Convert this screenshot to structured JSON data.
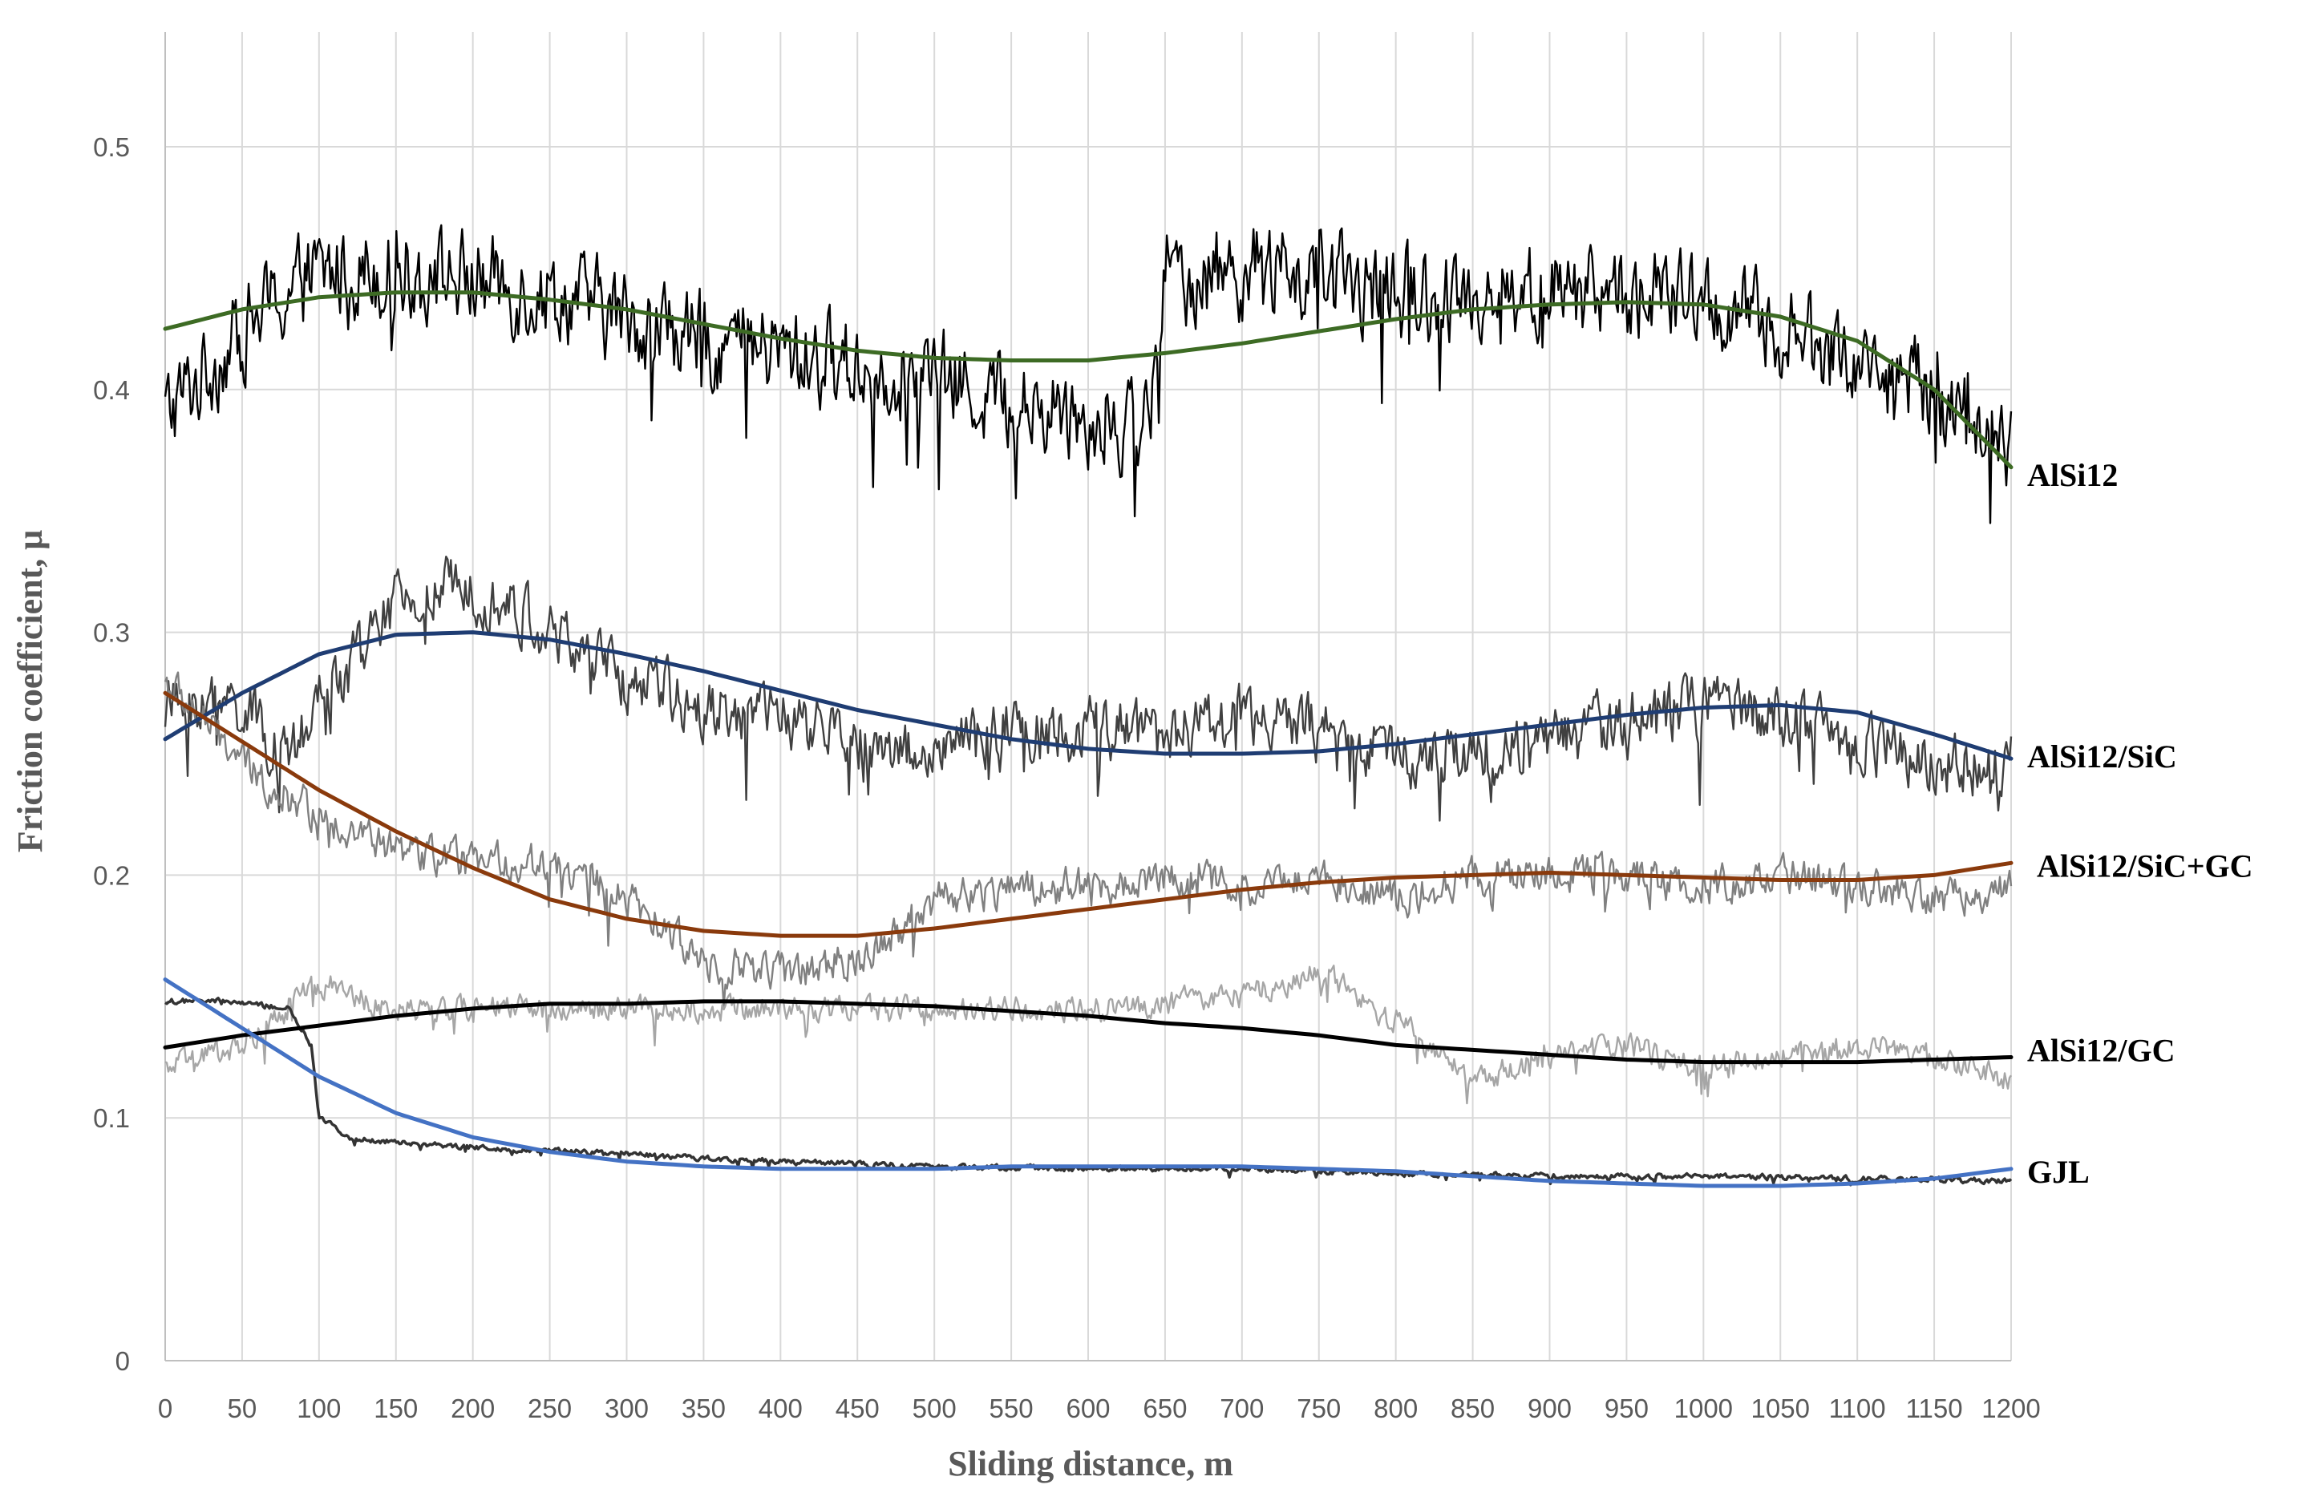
{
  "chart_data": {
    "type": "line",
    "title": "",
    "xlabel": "Sliding distance, m",
    "ylabel": "Friction coefficient, μ",
    "xlim": [
      0,
      1200
    ],
    "ylim": [
      0,
      0.55
    ],
    "x_ticks": [
      0,
      50,
      100,
      150,
      200,
      250,
      300,
      350,
      400,
      450,
      500,
      550,
      600,
      650,
      700,
      750,
      800,
      850,
      900,
      950,
      1000,
      1050,
      1100,
      1150,
      1200
    ],
    "y_ticks": [
      0,
      0.1,
      0.2,
      0.3,
      0.4,
      0.5
    ],
    "y_tick_labels": [
      "0",
      "0.1",
      "0.2",
      "0.3",
      "0.4",
      "0.5"
    ],
    "grid": "vertical and horizontal",
    "legend": "series labels at right end of curves",
    "series": [
      {
        "name": "AlSi12",
        "raw_color": "#000000",
        "trend_color": "#3d6b24",
        "noise": 0.03,
        "raw": [
          [
            0,
            0.39
          ],
          [
            30,
            0.41
          ],
          [
            60,
            0.43
          ],
          [
            90,
            0.445
          ],
          [
            120,
            0.45
          ],
          [
            150,
            0.45
          ],
          [
            200,
            0.445
          ],
          [
            250,
            0.44
          ],
          [
            300,
            0.43
          ],
          [
            350,
            0.42
          ],
          [
            400,
            0.415
          ],
          [
            450,
            0.41
          ],
          [
            500,
            0.405
          ],
          [
            550,
            0.395
          ],
          [
            600,
            0.39
          ],
          [
            630,
            0.385
          ],
          [
            645,
            0.4
          ],
          [
            650,
            0.445
          ],
          [
            700,
            0.45
          ],
          [
            750,
            0.445
          ],
          [
            800,
            0.44
          ],
          [
            850,
            0.44
          ],
          [
            900,
            0.44
          ],
          [
            950,
            0.44
          ],
          [
            1000,
            0.435
          ],
          [
            1050,
            0.425
          ],
          [
            1100,
            0.41
          ],
          [
            1150,
            0.4
          ],
          [
            1200,
            0.375
          ]
        ],
        "trend": [
          [
            0,
            0.425
          ],
          [
            50,
            0.433
          ],
          [
            100,
            0.438
          ],
          [
            150,
            0.44
          ],
          [
            200,
            0.44
          ],
          [
            250,
            0.437
          ],
          [
            300,
            0.433
          ],
          [
            350,
            0.427
          ],
          [
            400,
            0.421
          ],
          [
            450,
            0.416
          ],
          [
            500,
            0.413
          ],
          [
            550,
            0.412
          ],
          [
            600,
            0.412
          ],
          [
            650,
            0.415
          ],
          [
            700,
            0.419
          ],
          [
            750,
            0.424
          ],
          [
            800,
            0.429
          ],
          [
            850,
            0.433
          ],
          [
            900,
            0.435
          ],
          [
            950,
            0.436
          ],
          [
            1000,
            0.435
          ],
          [
            1050,
            0.43
          ],
          [
            1100,
            0.42
          ],
          [
            1150,
            0.4
          ],
          [
            1200,
            0.368
          ]
        ]
      },
      {
        "name": "AlSi12/SiC",
        "raw_color": "#404040",
        "trend_color": "#1f3d73",
        "noise": 0.02,
        "raw": [
          [
            0,
            0.27
          ],
          [
            50,
            0.27
          ],
          [
            80,
            0.245
          ],
          [
            100,
            0.27
          ],
          [
            150,
            0.31
          ],
          [
            200,
            0.32
          ],
          [
            250,
            0.3
          ],
          [
            300,
            0.28
          ],
          [
            350,
            0.27
          ],
          [
            400,
            0.265
          ],
          [
            450,
            0.255
          ],
          [
            500,
            0.25
          ],
          [
            550,
            0.26
          ],
          [
            600,
            0.26
          ],
          [
            650,
            0.26
          ],
          [
            700,
            0.265
          ],
          [
            750,
            0.26
          ],
          [
            800,
            0.25
          ],
          [
            850,
            0.25
          ],
          [
            900,
            0.255
          ],
          [
            950,
            0.265
          ],
          [
            1000,
            0.27
          ],
          [
            1050,
            0.265
          ],
          [
            1100,
            0.255
          ],
          [
            1150,
            0.245
          ],
          [
            1200,
            0.245
          ]
        ],
        "trend": [
          [
            0,
            0.256
          ],
          [
            50,
            0.275
          ],
          [
            100,
            0.291
          ],
          [
            150,
            0.299
          ],
          [
            200,
            0.3
          ],
          [
            250,
            0.297
          ],
          [
            300,
            0.291
          ],
          [
            350,
            0.284
          ],
          [
            400,
            0.276
          ],
          [
            450,
            0.268
          ],
          [
            500,
            0.262
          ],
          [
            550,
            0.256
          ],
          [
            600,
            0.252
          ],
          [
            650,
            0.25
          ],
          [
            700,
            0.25
          ],
          [
            750,
            0.251
          ],
          [
            800,
            0.254
          ],
          [
            850,
            0.258
          ],
          [
            900,
            0.262
          ],
          [
            950,
            0.266
          ],
          [
            1000,
            0.269
          ],
          [
            1050,
            0.27
          ],
          [
            1100,
            0.267
          ],
          [
            1150,
            0.258
          ],
          [
            1200,
            0.248
          ]
        ]
      },
      {
        "name": "AlSi12/SiC+GC",
        "raw_color": "#808080",
        "trend_color": "#8a3a0c",
        "noise": 0.012,
        "raw": [
          [
            0,
            0.28
          ],
          [
            30,
            0.26
          ],
          [
            60,
            0.24
          ],
          [
            100,
            0.225
          ],
          [
            150,
            0.21
          ],
          [
            200,
            0.205
          ],
          [
            250,
            0.205
          ],
          [
            300,
            0.19
          ],
          [
            350,
            0.165
          ],
          [
            400,
            0.16
          ],
          [
            450,
            0.165
          ],
          [
            500,
            0.19
          ],
          [
            550,
            0.195
          ],
          [
            600,
            0.195
          ],
          [
            650,
            0.2
          ],
          [
            700,
            0.195
          ],
          [
            750,
            0.2
          ],
          [
            800,
            0.19
          ],
          [
            850,
            0.2
          ],
          [
            900,
            0.2
          ],
          [
            950,
            0.2
          ],
          [
            1000,
            0.195
          ],
          [
            1050,
            0.2
          ],
          [
            1100,
            0.195
          ],
          [
            1150,
            0.19
          ],
          [
            1200,
            0.195
          ]
        ],
        "trend": [
          [
            0,
            0.275
          ],
          [
            50,
            0.255
          ],
          [
            100,
            0.235
          ],
          [
            150,
            0.218
          ],
          [
            200,
            0.203
          ],
          [
            250,
            0.19
          ],
          [
            300,
            0.182
          ],
          [
            350,
            0.177
          ],
          [
            400,
            0.175
          ],
          [
            450,
            0.175
          ],
          [
            500,
            0.178
          ],
          [
            550,
            0.182
          ],
          [
            600,
            0.186
          ],
          [
            650,
            0.19
          ],
          [
            700,
            0.194
          ],
          [
            750,
            0.197
          ],
          [
            800,
            0.199
          ],
          [
            850,
            0.2
          ],
          [
            900,
            0.201
          ],
          [
            950,
            0.2
          ],
          [
            1000,
            0.199
          ],
          [
            1050,
            0.198
          ],
          [
            1100,
            0.198
          ],
          [
            1150,
            0.2
          ],
          [
            1200,
            0.205
          ]
        ]
      },
      {
        "name": "AlSi12/GC",
        "raw_color": "#a6a6a6",
        "trend_color": "#000000",
        "noise": 0.008,
        "raw": [
          [
            0,
            0.12
          ],
          [
            50,
            0.13
          ],
          [
            100,
            0.155
          ],
          [
            150,
            0.145
          ],
          [
            200,
            0.145
          ],
          [
            300,
            0.145
          ],
          [
            400,
            0.145
          ],
          [
            500,
            0.145
          ],
          [
            600,
            0.145
          ],
          [
            700,
            0.15
          ],
          [
            750,
            0.16
          ],
          [
            800,
            0.14
          ],
          [
            850,
            0.115
          ],
          [
            900,
            0.125
          ],
          [
            950,
            0.13
          ],
          [
            1000,
            0.12
          ],
          [
            1050,
            0.125
          ],
          [
            1100,
            0.13
          ],
          [
            1150,
            0.125
          ],
          [
            1200,
            0.115
          ]
        ],
        "trend": [
          [
            0,
            0.129
          ],
          [
            50,
            0.134
          ],
          [
            100,
            0.138
          ],
          [
            150,
            0.142
          ],
          [
            200,
            0.145
          ],
          [
            250,
            0.147
          ],
          [
            300,
            0.147
          ],
          [
            350,
            0.148
          ],
          [
            400,
            0.148
          ],
          [
            450,
            0.147
          ],
          [
            500,
            0.146
          ],
          [
            550,
            0.144
          ],
          [
            600,
            0.142
          ],
          [
            650,
            0.139
          ],
          [
            700,
            0.137
          ],
          [
            750,
            0.134
          ],
          [
            800,
            0.13
          ],
          [
            850,
            0.128
          ],
          [
            900,
            0.126
          ],
          [
            950,
            0.124
          ],
          [
            1000,
            0.123
          ],
          [
            1050,
            0.123
          ],
          [
            1100,
            0.123
          ],
          [
            1150,
            0.124
          ],
          [
            1200,
            0.125
          ]
        ]
      },
      {
        "name": "GJL",
        "raw_color": "#333333",
        "trend_color": "#4472c4",
        "noise": 0.0018,
        "raw": [
          [
            0,
            0.148
          ],
          [
            40,
            0.148
          ],
          [
            80,
            0.145
          ],
          [
            95,
            0.13
          ],
          [
            100,
            0.1
          ],
          [
            120,
            0.092
          ],
          [
            150,
            0.09
          ],
          [
            200,
            0.088
          ],
          [
            300,
            0.085
          ],
          [
            400,
            0.082
          ],
          [
            500,
            0.08
          ],
          [
            600,
            0.079
          ],
          [
            700,
            0.079
          ],
          [
            800,
            0.077
          ],
          [
            900,
            0.076
          ],
          [
            1000,
            0.076
          ],
          [
            1100,
            0.075
          ],
          [
            1200,
            0.074
          ]
        ],
        "trend": [
          [
            0,
            0.157
          ],
          [
            50,
            0.137
          ],
          [
            100,
            0.117
          ],
          [
            150,
            0.102
          ],
          [
            200,
            0.092
          ],
          [
            250,
            0.086
          ],
          [
            300,
            0.082
          ],
          [
            350,
            0.08
          ],
          [
            400,
            0.079
          ],
          [
            450,
            0.079
          ],
          [
            500,
            0.079
          ],
          [
            550,
            0.08
          ],
          [
            600,
            0.08
          ],
          [
            650,
            0.08
          ],
          [
            700,
            0.08
          ],
          [
            750,
            0.079
          ],
          [
            800,
            0.078
          ],
          [
            850,
            0.076
          ],
          [
            900,
            0.074
          ],
          [
            950,
            0.073
          ],
          [
            1000,
            0.072
          ],
          [
            1050,
            0.072
          ],
          [
            1100,
            0.073
          ],
          [
            1150,
            0.075
          ],
          [
            1200,
            0.079
          ]
        ]
      }
    ]
  }
}
